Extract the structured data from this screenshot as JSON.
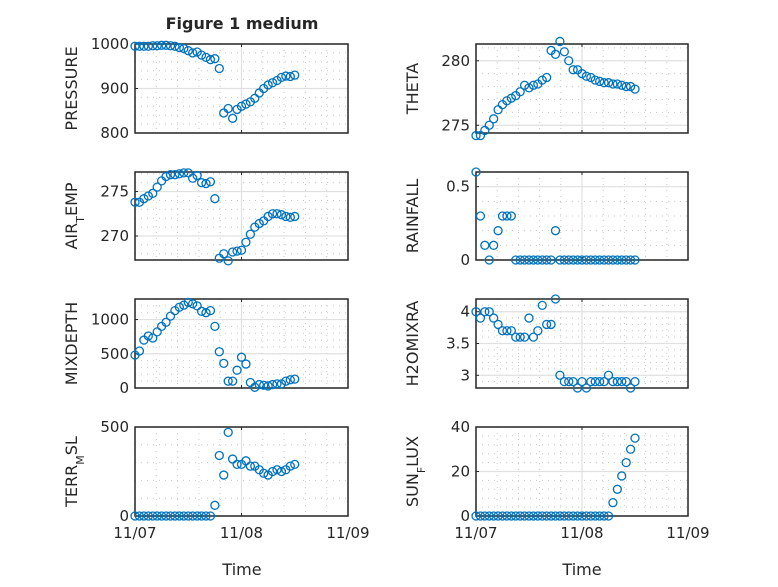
{
  "chart_data": {
    "title": "Figure 1 medium",
    "xlabel": "Time",
    "x_tick_labels": [
      "11/07",
      "11/08",
      "11/09"
    ],
    "x_units": "hours since 11/07 00:00",
    "x": [
      0,
      1,
      2,
      3,
      4,
      5,
      6,
      7,
      8,
      9,
      10,
      11,
      12,
      13,
      14,
      15,
      16,
      17,
      18,
      19,
      20,
      21,
      22,
      23,
      24,
      25,
      26,
      27,
      28,
      29,
      30,
      31,
      32,
      33,
      34,
      35,
      36
    ],
    "xlim_days": [
      0,
      2
    ],
    "grid": "major and minor",
    "panels": [
      {
        "type": "scatter",
        "ylabel": "PRESSURE",
        "ylim": [
          800,
          1000
        ],
        "yticks": [
          800,
          900,
          1000
        ],
        "tick_labels": [
          "800",
          "900",
          "1000"
        ],
        "values": [
          995,
          995,
          995,
          995,
          996,
          996,
          997,
          997,
          996,
          995,
          992,
          990,
          985,
          980,
          982,
          975,
          970,
          965,
          967,
          945,
          845,
          855,
          833,
          853,
          860,
          865,
          870,
          878,
          890,
          900,
          908,
          913,
          918,
          925,
          928,
          927,
          930
        ]
      },
      {
        "type": "scatter",
        "ylabel": "THETA",
        "ylim": [
          274.4,
          281.3
        ],
        "yticks": [
          275,
          280
        ],
        "tick_labels": [
          "275",
          "280"
        ],
        "values": [
          274.2,
          274.2,
          274.6,
          275,
          275.5,
          276.2,
          276.6,
          276.9,
          277.1,
          277.3,
          277.6,
          278.1,
          277.9,
          278.1,
          278.2,
          278.5,
          278.7,
          280.8,
          280.5,
          281.5,
          280.7,
          280,
          279.3,
          279.3,
          279,
          278.8,
          278.7,
          278.5,
          278.4,
          278.3,
          278.3,
          278.2,
          278.2,
          278.1,
          278,
          278,
          277.8
        ]
      },
      {
        "type": "scatter",
        "ylabel": "AIR_TEMP",
        "ylim": [
          267.3,
          277.2
        ],
        "yticks": [
          270,
          275
        ],
        "tick_labels": [
          "270",
          "275"
        ],
        "values": [
          273.8,
          273.8,
          274.2,
          274.5,
          274.8,
          275.5,
          276.2,
          276.7,
          276.9,
          276.9,
          277,
          277.1,
          277.1,
          276.5,
          276.8,
          276,
          275.9,
          276.1,
          274.2,
          267.5,
          268,
          267.2,
          268.2,
          268.3,
          268.4,
          269.3,
          270.2,
          271,
          271.4,
          271.7,
          272.2,
          272.5,
          272.5,
          272.4,
          272.2,
          272.1,
          272.2
        ]
      },
      {
        "type": "scatter",
        "ylabel": "RAINFALL",
        "ylim": [
          0,
          0.6
        ],
        "yticks": [
          0,
          0.5
        ],
        "tick_labels": [
          "0",
          "0.5"
        ],
        "values": [
          0.6,
          0.3,
          0.1,
          0,
          0.1,
          0.2,
          0.3,
          0.3,
          0.3,
          0,
          0,
          0,
          0,
          0,
          0,
          0,
          0,
          0,
          0.2,
          0,
          0,
          0,
          0,
          0,
          0,
          0,
          0,
          0,
          0,
          0,
          0,
          0,
          0,
          0,
          0,
          0,
          0
        ]
      },
      {
        "type": "scatter",
        "ylabel": "MIXDEPTH",
        "ylim": [
          0,
          1300
        ],
        "yticks": [
          0,
          500,
          1000
        ],
        "tick_labels": [
          "0",
          "500",
          "1000"
        ],
        "values": [
          480,
          540,
          700,
          760,
          730,
          820,
          900,
          960,
          1050,
          1130,
          1180,
          1210,
          1250,
          1230,
          1200,
          1120,
          1100,
          1130,
          900,
          530,
          360,
          100,
          100,
          260,
          450,
          350,
          80,
          10,
          50,
          40,
          30,
          50,
          60,
          60,
          100,
          120,
          130
        ]
      },
      {
        "type": "scatter",
        "ylabel": "H2OMIXRA",
        "ylim": [
          2.8,
          4.2
        ],
        "yticks": [
          3,
          3.5,
          4
        ],
        "tick_labels": [
          "3",
          "3.5",
          "4"
        ],
        "values": [
          4,
          3.9,
          4,
          4,
          3.9,
          3.8,
          3.7,
          3.7,
          3.7,
          3.6,
          3.6,
          3.6,
          3.9,
          3.6,
          3.7,
          4.1,
          3.8,
          3.8,
          4.2,
          3.0,
          2.9,
          2.9,
          2.9,
          2.8,
          2.9,
          2.8,
          2.9,
          2.9,
          2.9,
          2.9,
          3.0,
          2.9,
          2.9,
          2.9,
          2.9,
          2.8,
          2.9
        ]
      },
      {
        "type": "scatter",
        "ylabel": "TERR_MSL",
        "ylim": [
          0,
          500
        ],
        "yticks": [
          0,
          500
        ],
        "tick_labels": [
          "0",
          "500"
        ],
        "values": [
          0,
          0,
          0,
          0,
          0,
          0,
          0,
          0,
          0,
          0,
          0,
          0,
          0,
          0,
          0,
          0,
          0,
          0,
          60,
          340,
          230,
          470,
          320,
          290,
          290,
          310,
          280,
          280,
          260,
          240,
          230,
          250,
          260,
          250,
          260,
          280,
          290
        ]
      },
      {
        "type": "scatter",
        "ylabel": "SUN_FLUX",
        "ylim": [
          0,
          40
        ],
        "yticks": [
          0,
          20,
          40
        ],
        "tick_labels": [
          "0",
          "20",
          "40"
        ],
        "values": [
          0,
          0,
          0,
          0,
          0,
          0,
          0,
          0,
          0,
          0,
          0,
          0,
          0,
          0,
          0,
          0,
          0,
          0,
          0,
          0,
          0,
          0,
          0,
          0,
          0,
          0,
          0,
          0,
          0,
          0,
          0,
          6,
          12,
          18,
          24,
          30,
          35
        ]
      }
    ],
    "marker_color": "#0072BD"
  }
}
